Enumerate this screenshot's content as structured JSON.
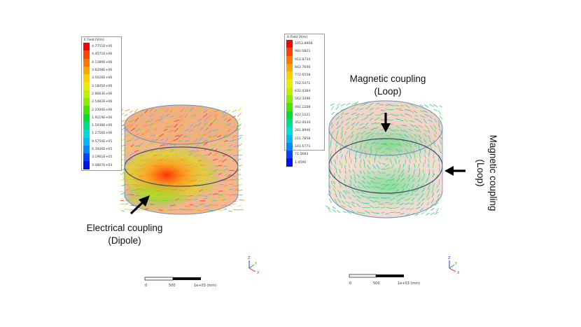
{
  "left": {
    "legend": {
      "title": "E Field [V/m]",
      "colors": [
        "#ff0000",
        "#ff4400",
        "#ff7700",
        "#ffa500",
        "#ffd000",
        "#e8ec00",
        "#bff000",
        "#88ee00",
        "#44e600",
        "#00dd33",
        "#00dd88",
        "#00dddd",
        "#00b8ff",
        "#0088ff",
        "#0044ff",
        "#0010ee"
      ],
      "values": [
        "4.7751E+06",
        "4.4571E+06",
        "4.1389E+06",
        "3.8208E+06",
        "3.5026E+06",
        "3.1845E+06",
        "2.8663E+06",
        "2.5482E+06",
        "2.2300E+06",
        "1.9119E+06",
        "1.5938E+06",
        "1.2756E+06",
        "9.5750E+05",
        "6.3936E+05",
        "3.1961E+05",
        "3.4807E+03"
      ]
    },
    "caption": {
      "line1": "Electrical coupling",
      "line2": "(Dipole)"
    },
    "scale": {
      "tick0": "0",
      "tick1": "500",
      "tick2": "1e+03 (mm)"
    },
    "axes": {
      "z": "Z",
      "y": "Y",
      "x": "X"
    }
  },
  "right": {
    "legend": {
      "title": "H Field [A/m]",
      "colors": [
        "#ff0000",
        "#ff4400",
        "#ff7700",
        "#ffa500",
        "#ffd000",
        "#e8ec00",
        "#bff000",
        "#88ee00",
        "#44e600",
        "#00dd33",
        "#00dd88",
        "#00dddd",
        "#00b8ff",
        "#0088ff",
        "#0044ff",
        "#0010ee"
      ],
      "values": [
        "1053.8908",
        "982.0821",
        "912.8734",
        "842.7646",
        "772.6558",
        "702.5471",
        "632.4384",
        "562.3296",
        "492.2208",
        "422.1121",
        "352.0034",
        "281.8946",
        "211.7858",
        "141.6771",
        "71.5683",
        "1.4596"
      ]
    },
    "caption_top": {
      "line1": "Magnetic coupling",
      "line2": "(Loop)"
    },
    "caption_side": {
      "line1": "Magnetic coupling",
      "line2": "(Loop)"
    },
    "scale": {
      "tick0": "0",
      "tick1": "500",
      "tick2": "1e+03 (mm)"
    },
    "axes": {
      "z": "Z",
      "y": "Y",
      "x": "X"
    }
  }
}
